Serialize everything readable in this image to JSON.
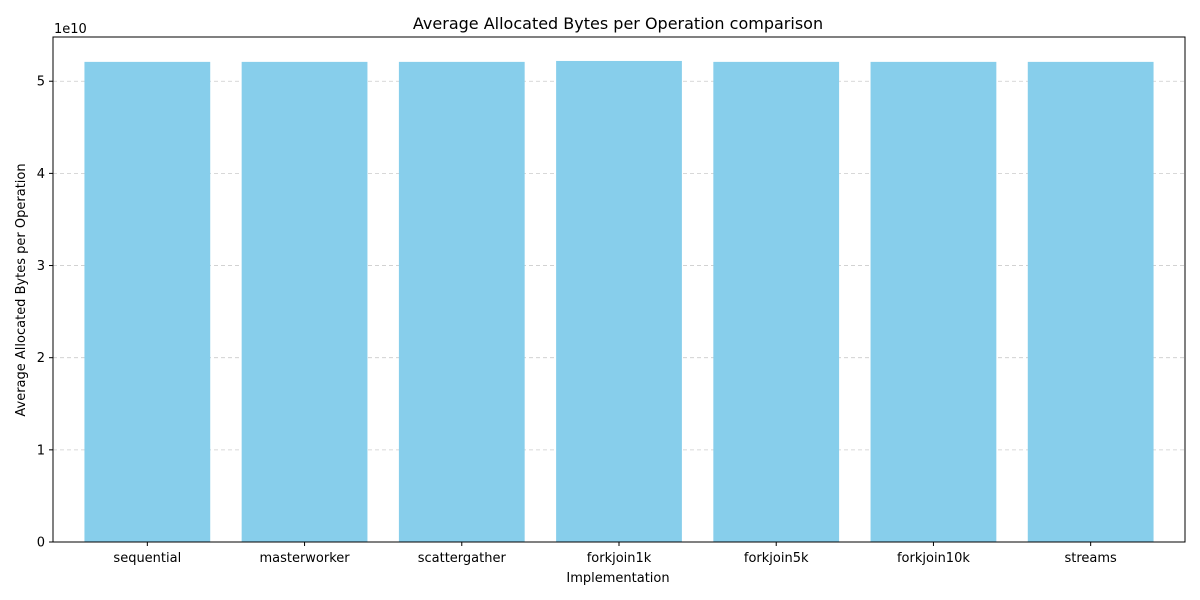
{
  "chart_data": {
    "type": "bar",
    "title": "Average Allocated Bytes per Operation comparison",
    "xlabel": "Implementation",
    "ylabel": "Average Allocated Bytes per Operation",
    "y_offset_label": "1e10",
    "categories": [
      "sequential",
      "masterworker",
      "scattergather",
      "forkjoin1k",
      "forkjoin5k",
      "forkjoin10k",
      "streams"
    ],
    "values": [
      52100000000,
      52100000000,
      52100000000,
      52200000000,
      52100000000,
      52100000000,
      52100000000
    ],
    "ylim": [
      0,
      54800000000
    ],
    "y_ticks": [
      0,
      10000000000,
      20000000000,
      30000000000,
      40000000000,
      50000000000
    ],
    "y_tick_labels": [
      "0",
      "1",
      "2",
      "3",
      "4",
      "5"
    ],
    "grid": "y-dashed",
    "colors": {
      "bar": "#87CEEB",
      "grid": "#cccccc",
      "axis": "#000000"
    }
  }
}
